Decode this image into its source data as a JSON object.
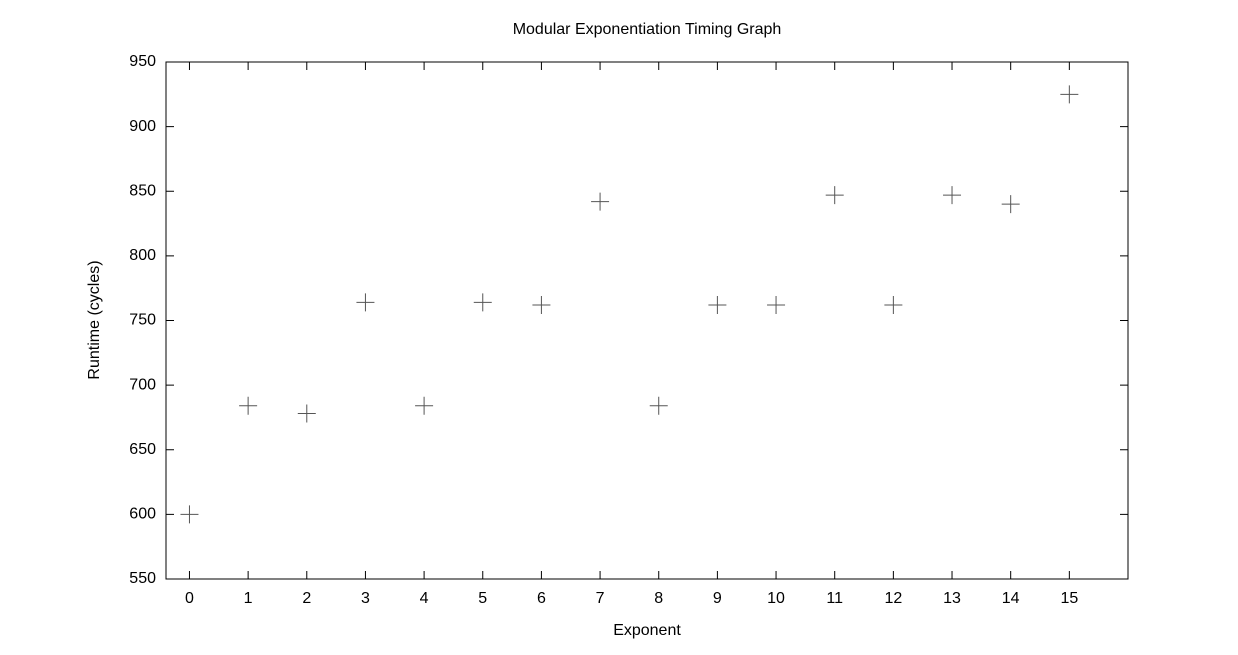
{
  "chart_data": {
    "type": "scatter",
    "title": "Modular Exponentiation Timing Graph",
    "x_label": "Exponent",
    "y_label": "Runtime (cycles)",
    "series": [
      {
        "color": "#555555",
        "x": [
          0,
          1,
          2,
          3,
          4,
          5,
          6,
          7,
          8,
          9,
          10,
          11,
          12,
          13,
          14,
          15
        ],
        "values": [
          600,
          684,
          678,
          764,
          684,
          764,
          762,
          842,
          684,
          762,
          762,
          847,
          762,
          847,
          840,
          925
        ]
      }
    ],
    "xlim": [
      -0.4,
      16
    ],
    "xticks": [
      0,
      1,
      2,
      3,
      4,
      5,
      6,
      7,
      8,
      9,
      10,
      11,
      12,
      13,
      14,
      15
    ],
    "ylim": [
      550,
      950
    ],
    "yticks": [
      550,
      600,
      650,
      700,
      750,
      800,
      850,
      900,
      950
    ],
    "grid": false
  }
}
